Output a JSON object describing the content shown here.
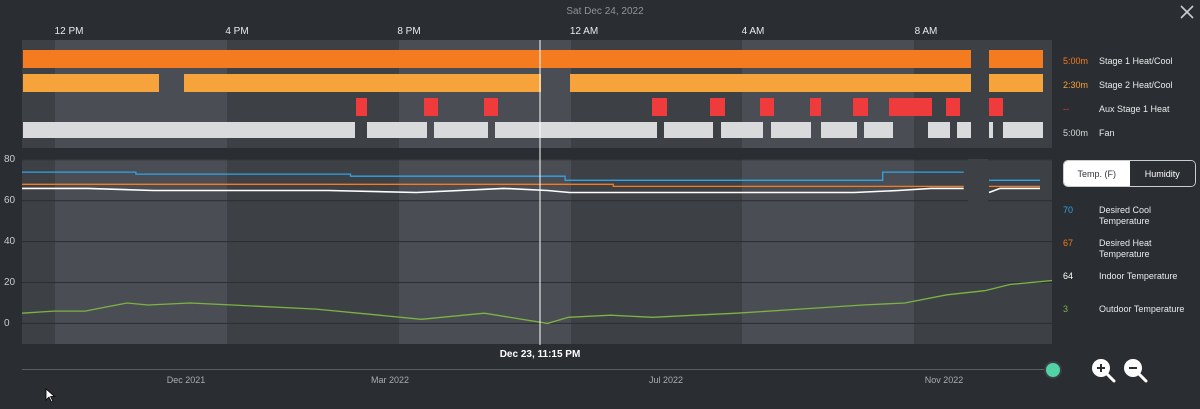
{
  "header": {
    "date": "Sat Dec 24, 2022",
    "close_icon": "close-icon"
  },
  "time_axis": [
    "12 PM",
    "4 PM",
    "8 PM",
    "12 AM",
    "4 AM",
    "8 AM"
  ],
  "equipment": [
    {
      "value": "5:00m",
      "label": "Stage 1 Heat/Cool",
      "color": "#f47b20"
    },
    {
      "value": "2:30m",
      "label": "Stage 2 Heat/Cool",
      "color": "#f5a33a"
    },
    {
      "value": "--",
      "label": "Aux Stage 1 Heat",
      "color": "#ef3b3b"
    },
    {
      "value": "5:00m",
      "label": "Fan",
      "color": "#d9dadc"
    }
  ],
  "toggle": {
    "temp_label": "Temp. (F)",
    "humidity_label": "Humidity",
    "selected": "Temp. (F)"
  },
  "legend": [
    {
      "value": "70",
      "label": "Desired Cool Temperature",
      "color": "#2fa4e7"
    },
    {
      "value": "67",
      "label": "Desired Heat Temperature",
      "color": "#f47b20"
    },
    {
      "value": "64",
      "label": "Indoor Temperature",
      "color": "#ffffff"
    },
    {
      "value": "3",
      "label": "Outdoor Temperature",
      "color": "#7cb342"
    }
  ],
  "cursor": {
    "label": "Dec 23, 11:15 PM"
  },
  "scrubber": {
    "months": [
      "Dec 2021",
      "Mar 2022",
      "Jul 2022",
      "Nov 2022"
    ]
  },
  "chart_data": {
    "type": "line",
    "x_unit": "hours since 10:15 AM Dec 23",
    "y_ticks": [
      "80",
      "60",
      "40",
      "20",
      "0"
    ],
    "ylim": [
      -10,
      80
    ],
    "series": [
      {
        "name": "Desired Cool Temperature",
        "color": "#2fa4e7",
        "points": [
          [
            0,
            74
          ],
          [
            5.2,
            74
          ],
          [
            5.2,
            73
          ],
          [
            15,
            73
          ],
          [
            15,
            72
          ],
          [
            24.8,
            72
          ],
          [
            24.8,
            70
          ],
          [
            39.3,
            70
          ],
          [
            39.3,
            74
          ],
          [
            43,
            74
          ]
        ]
      },
      {
        "name": "Desired Heat Temperature",
        "color": "#f47b20",
        "points": [
          [
            0,
            68
          ],
          [
            27,
            68
          ],
          [
            27,
            67
          ],
          [
            43,
            67
          ]
        ]
      },
      {
        "name": "Indoor Temperature",
        "color": "#ffffff",
        "points": [
          [
            0,
            66
          ],
          [
            3,
            66
          ],
          [
            6,
            65
          ],
          [
            10,
            65
          ],
          [
            14,
            65
          ],
          [
            18,
            64
          ],
          [
            22,
            66
          ],
          [
            24,
            65
          ],
          [
            25,
            64
          ],
          [
            30,
            64
          ],
          [
            34,
            64
          ],
          [
            38,
            64
          ],
          [
            40,
            65
          ],
          [
            41.5,
            66
          ],
          [
            43,
            66
          ]
        ]
      },
      {
        "name": "Outdoor Temperature",
        "color": "#7cb342",
        "points": [
          [
            0,
            5
          ],
          [
            1.5,
            6
          ],
          [
            3,
            6
          ],
          [
            4,
            8
          ],
          [
            5,
            10
          ],
          [
            6,
            9
          ],
          [
            8,
            10
          ],
          [
            10,
            9
          ],
          [
            14,
            7
          ],
          [
            17,
            4
          ],
          [
            19,
            2
          ],
          [
            21,
            4
          ],
          [
            22,
            5
          ],
          [
            25,
            0
          ],
          [
            26,
            3
          ],
          [
            28,
            4
          ],
          [
            30,
            3
          ],
          [
            32,
            4
          ],
          [
            34,
            5
          ],
          [
            37,
            7
          ],
          [
            40,
            9
          ],
          [
            42,
            10
          ],
          [
            44,
            14
          ],
          [
            45.8,
            16
          ],
          [
            47,
            19
          ],
          [
            49,
            21
          ]
        ]
      }
    ]
  }
}
